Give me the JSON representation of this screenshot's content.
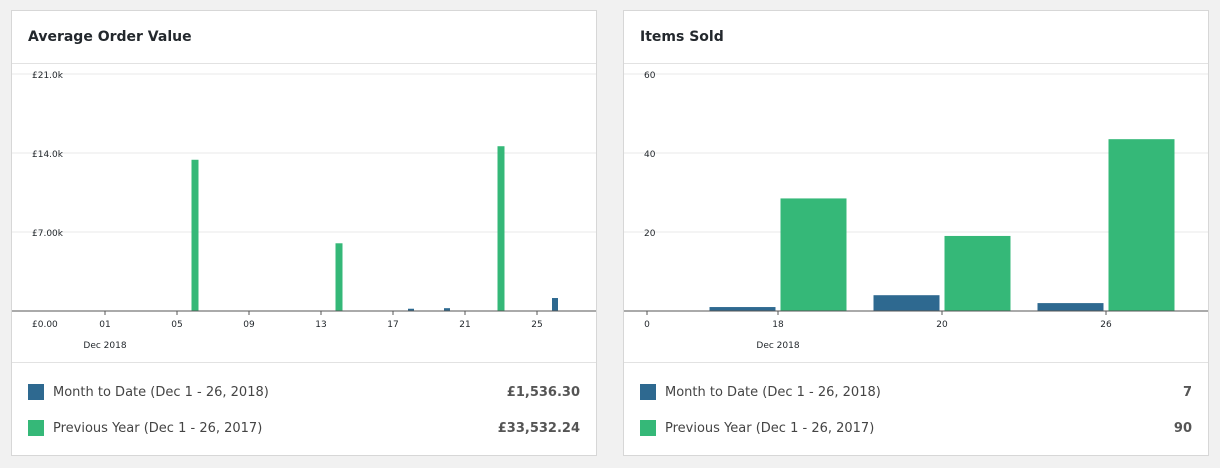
{
  "colors": {
    "current": "#2e6990",
    "previous": "#35b878",
    "grid": "#e8e8e8",
    "axis": "#555555"
  },
  "cards": [
    {
      "title": "Average Order Value",
      "legend": [
        {
          "label": "Month to Date (Dec 1 - 26, 2018)",
          "value": "£1,536.30"
        },
        {
          "label": "Previous Year (Dec 1 - 26, 2017)",
          "value": "£33,532.24"
        }
      ]
    },
    {
      "title": "Items Sold",
      "legend": [
        {
          "label": "Month to Date (Dec 1 - 26, 2018)",
          "value": "7"
        },
        {
          "label": "Previous Year (Dec 1 - 26, 2017)",
          "value": "90"
        }
      ]
    }
  ],
  "chart_data": [
    {
      "type": "bar",
      "title": "Average Order Value",
      "x_label": "Dec 2018",
      "x_ticks": [
        "01",
        "05",
        "09",
        "13",
        "17",
        "21",
        "25"
      ],
      "y_ticks": [
        "£0.00",
        "£7.00k",
        "£14.0k",
        "£21.0k"
      ],
      "ylim": [
        0,
        21000
      ],
      "x_days": [
        1,
        26
      ],
      "series": [
        {
          "name": "Month to Date (Dec 1 - 26, 2018)",
          "color": "#2e6990",
          "points": [
            {
              "day": 18,
              "value": 200
            },
            {
              "day": 20,
              "value": 250
            },
            {
              "day": 26,
              "value": 1150
            }
          ]
        },
        {
          "name": "Previous Year (Dec 1 - 26, 2017)",
          "color": "#35b878",
          "points": [
            {
              "day": 6,
              "value": 13400
            },
            {
              "day": 14,
              "value": 6000
            },
            {
              "day": 23,
              "value": 14600
            }
          ]
        }
      ]
    },
    {
      "type": "bar",
      "title": "Items Sold",
      "x_label": "Dec 2018",
      "x_ticks": [
        "0",
        "18",
        "20",
        "26"
      ],
      "y_ticks": [
        "20",
        "40",
        "60"
      ],
      "ylim": [
        0,
        60
      ],
      "categories": [
        "18",
        "20",
        "26"
      ],
      "series": [
        {
          "name": "Month to Date (Dec 1 - 26, 2018)",
          "color": "#2e6990",
          "values": [
            1,
            4,
            2
          ]
        },
        {
          "name": "Previous Year (Dec 1 - 26, 2017)",
          "color": "#35b878",
          "values": [
            28.5,
            19,
            43.5
          ]
        }
      ]
    }
  ]
}
